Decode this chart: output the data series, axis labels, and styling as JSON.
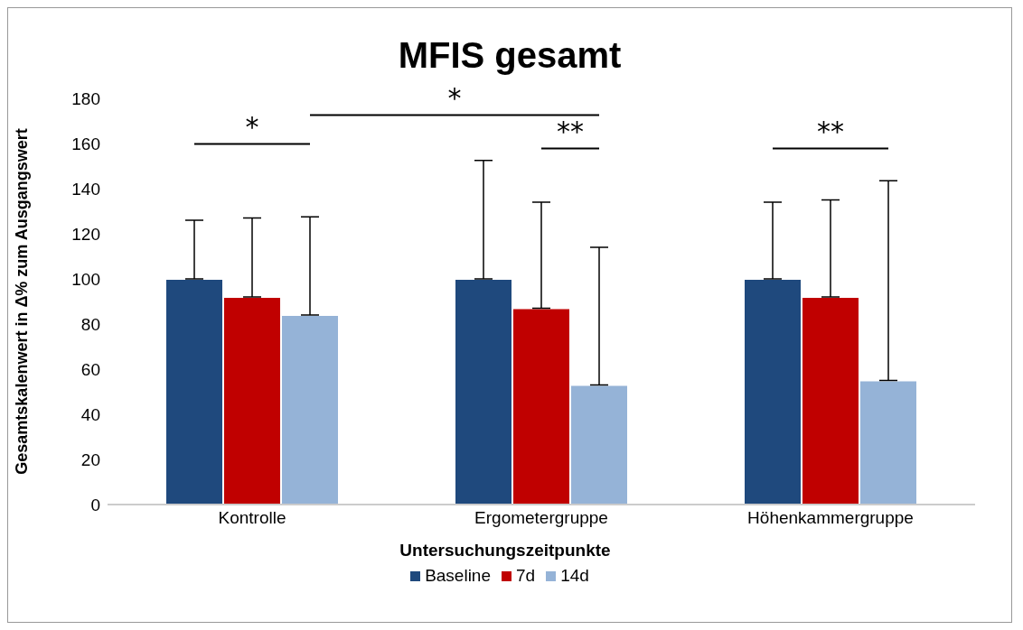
{
  "chart_data": {
    "type": "bar",
    "title": "MFIS gesamt",
    "ylabel": "Gesamtskalenwert in Δ% zum Ausgangswert",
    "legend_title": "Untersuchungszeitpunkte",
    "categories": [
      "Kontrolle",
      "Ergometergruppe",
      "Höhenkammergruppe"
    ],
    "series": [
      {
        "name": "Baseline",
        "color": "#1f497d",
        "values": [
          100,
          100,
          100
        ],
        "errors": [
          [
            100,
            126
          ],
          [
            100,
            152.5
          ],
          [
            100,
            134
          ]
        ]
      },
      {
        "name": "7d",
        "color": "#c00000",
        "values": [
          92,
          87,
          92
        ],
        "errors": [
          [
            92,
            127
          ],
          [
            87,
            134
          ],
          [
            92,
            135
          ]
        ]
      },
      {
        "name": "14d",
        "color": "#95b3d7",
        "values": [
          84,
          53,
          55
        ],
        "errors": [
          [
            84,
            127.5
          ],
          [
            53,
            114
          ],
          [
            55,
            143.5
          ]
        ]
      }
    ],
    "ylim": [
      0,
      180
    ],
    "yticks": [
      0,
      20,
      40,
      60,
      80,
      100,
      120,
      140,
      160,
      180
    ],
    "legend": "bottom",
    "annotations": [
      "*",
      "*",
      "**",
      "**"
    ]
  }
}
